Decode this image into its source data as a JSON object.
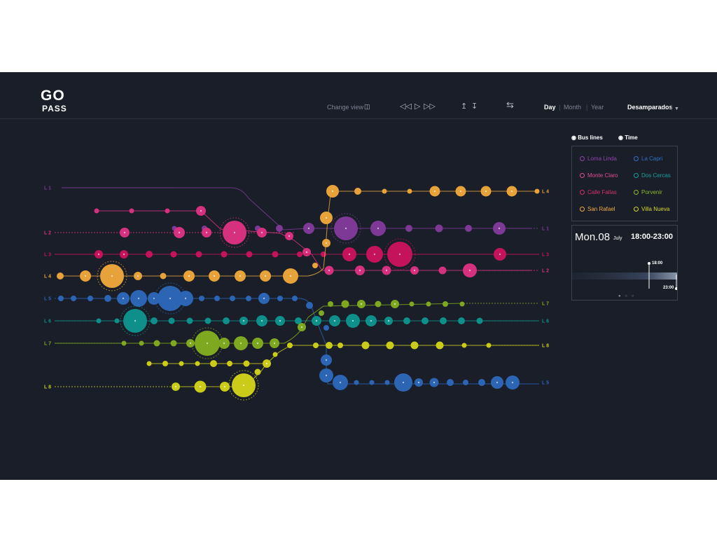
{
  "brand": {
    "go": "GO",
    "pass": "PASS"
  },
  "toolbar": {
    "change_view": "Change view",
    "periods": [
      "Day",
      "Month",
      "Year"
    ],
    "active_period": "Day",
    "location": "Desamparados"
  },
  "tabs": [
    "Bus lines",
    "Time"
  ],
  "colors": {
    "L1": "#7e3996",
    "L2": "#d6317f",
    "L3": "#c4135a",
    "L4": "#e7a23a",
    "L5": "#2b65b4",
    "L6": "#0e8f8a",
    "L7": "#7fa821",
    "L8": "#cbcc19"
  },
  "line_labels": [
    "L 1",
    "L 2",
    "L 3",
    "L 4",
    "L 5",
    "L 6",
    "L 7",
    "L 8"
  ],
  "right_labels": [
    "L 4",
    "L 1",
    "L 3",
    "L 2",
    "L 7",
    "L 6",
    "L 8",
    "L 5"
  ],
  "legend": [
    {
      "name": "Loma Linda",
      "color": "#8e46a8"
    },
    {
      "name": "La Capri",
      "color": "#3371c4"
    },
    {
      "name": "Monte Claro",
      "color": "#e14d96"
    },
    {
      "name": "Dos Cercas",
      "color": "#16a29b"
    },
    {
      "name": "Calle Fallas",
      "color": "#d6316c"
    },
    {
      "name": "Porvenir",
      "color": "#8fba2a"
    },
    {
      "name": "San Rafael",
      "color": "#f0ad45"
    },
    {
      "name": "Villa Nueva",
      "color": "#d8d92a"
    }
  ],
  "time": {
    "day": "Mon.08",
    "month": "July",
    "range": "18:00-23:00",
    "start": "18:00",
    "end": "23:00",
    "pager": "● ○ ○"
  }
}
